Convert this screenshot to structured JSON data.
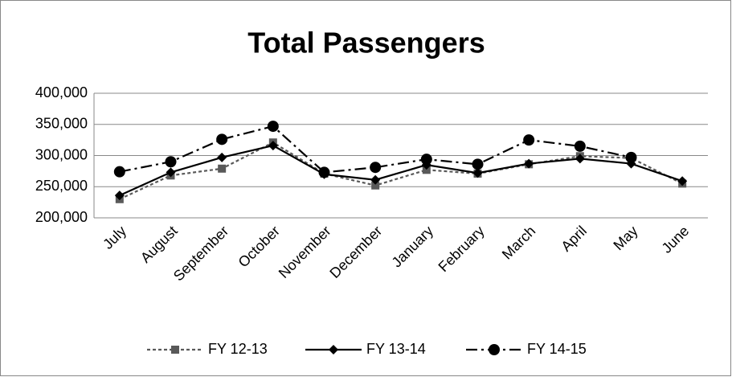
{
  "chart_data": {
    "type": "line",
    "title": "Total Passengers",
    "categories": [
      "July",
      "August",
      "September",
      "October",
      "November",
      "December",
      "January",
      "February",
      "March",
      "April",
      "May",
      "June"
    ],
    "series": [
      {
        "name": "FY 12-13",
        "color": "#595959",
        "marker": "square",
        "dash": "4 3",
        "values": [
          230000,
          268000,
          279000,
          321000,
          271000,
          252000,
          277000,
          271000,
          286000,
          299000,
          296000,
          255000
        ]
      },
      {
        "name": "FY 13-14",
        "color": "#000000",
        "marker": "diamond",
        "dash": "none",
        "values": [
          236000,
          273000,
          297000,
          316000,
          270000,
          261000,
          285000,
          272000,
          287000,
          295000,
          287000,
          259000
        ]
      },
      {
        "name": "FY 14-15",
        "color": "#000000",
        "marker": "circle",
        "dash": "14 5 3 5",
        "values": [
          274000,
          290000,
          326000,
          347000,
          273000,
          281000,
          294000,
          286000,
          325000,
          315000,
          297000,
          null
        ]
      }
    ],
    "ylim": [
      200000,
      400000
    ],
    "yticks": [
      {
        "value": 200000,
        "label": "200,000"
      },
      {
        "value": 250000,
        "label": "250,000"
      },
      {
        "value": 300000,
        "label": "300,000"
      },
      {
        "value": 350000,
        "label": "350,000"
      },
      {
        "value": 400000,
        "label": "400,000"
      }
    ],
    "grid": true,
    "legend": "bottom"
  }
}
